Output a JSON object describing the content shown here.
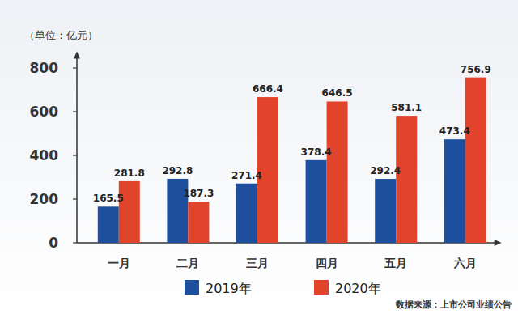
{
  "chart_data": {
    "type": "bar",
    "y_label": "（单位：亿元）",
    "annotations": [
      "数据来源：上市公司业绩公告"
    ],
    "categories": [
      "一月",
      "二月",
      "三月",
      "四月",
      "五月",
      "六月"
    ],
    "series": [
      {
        "name": "2019年",
        "color": "#1d4f9e",
        "values": [
          165.5,
          292.8,
          271.4,
          378.4,
          292.4,
          473.4
        ]
      },
      {
        "name": "2020年",
        "color": "#e2442b",
        "values": [
          281.8,
          187.3,
          666.4,
          646.5,
          581.1,
          756.9
        ]
      }
    ],
    "ylim": [
      0,
      850
    ],
    "yticks": [
      0,
      200,
      400,
      600,
      800
    ],
    "grid": false,
    "legend": "bottom",
    "data_labels": true
  }
}
